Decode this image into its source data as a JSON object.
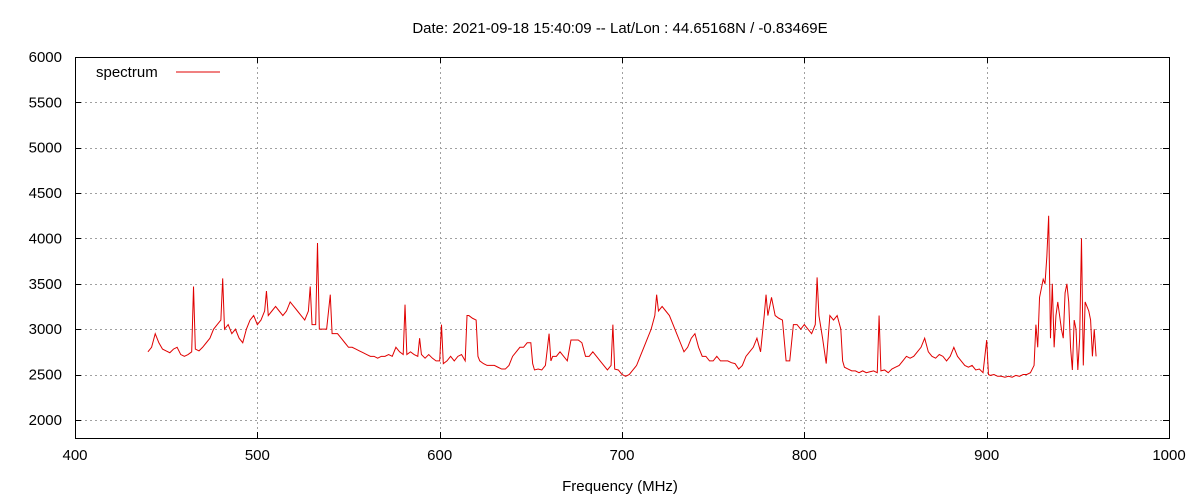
{
  "chart_data": {
    "type": "line",
    "title": "Date: 2021-09-18 15:40:09  --  Lat/Lon : 44.65168N / -0.83469E",
    "xlabel": "Frequency (MHz)",
    "ylabel": "",
    "xlim": [
      400,
      1000
    ],
    "ylim": [
      1800,
      6000
    ],
    "x_ticks": [
      400,
      500,
      600,
      700,
      800,
      900,
      1000
    ],
    "y_ticks": [
      2000,
      2500,
      3000,
      3500,
      4000,
      4500,
      5000,
      5500,
      6000
    ],
    "grid": true,
    "legend_position": "top-left",
    "series": [
      {
        "name": "spectrum",
        "color": "#e00000",
        "points": [
          [
            440,
            2750
          ],
          [
            442,
            2800
          ],
          [
            444,
            2950
          ],
          [
            446,
            2850
          ],
          [
            448,
            2780
          ],
          [
            450,
            2760
          ],
          [
            452,
            2740
          ],
          [
            454,
            2780
          ],
          [
            456,
            2800
          ],
          [
            458,
            2720
          ],
          [
            460,
            2700
          ],
          [
            462,
            2720
          ],
          [
            464,
            2750
          ],
          [
            465,
            3470
          ],
          [
            466,
            2780
          ],
          [
            468,
            2760
          ],
          [
            470,
            2800
          ],
          [
            472,
            2850
          ],
          [
            474,
            2900
          ],
          [
            476,
            3000
          ],
          [
            478,
            3050
          ],
          [
            480,
            3100
          ],
          [
            481,
            3560
          ],
          [
            482,
            3000
          ],
          [
            484,
            3050
          ],
          [
            486,
            2950
          ],
          [
            488,
            3000
          ],
          [
            490,
            2900
          ],
          [
            492,
            2850
          ],
          [
            494,
            3000
          ],
          [
            496,
            3100
          ],
          [
            498,
            3150
          ],
          [
            500,
            3050
          ],
          [
            502,
            3100
          ],
          [
            504,
            3200
          ],
          [
            505,
            3420
          ],
          [
            506,
            3150
          ],
          [
            508,
            3200
          ],
          [
            510,
            3250
          ],
          [
            512,
            3200
          ],
          [
            514,
            3150
          ],
          [
            516,
            3200
          ],
          [
            518,
            3300
          ],
          [
            520,
            3250
          ],
          [
            522,
            3200
          ],
          [
            524,
            3150
          ],
          [
            526,
            3100
          ],
          [
            528,
            3200
          ],
          [
            529,
            3470
          ],
          [
            530,
            3050
          ],
          [
            532,
            3050
          ],
          [
            533,
            3950
          ],
          [
            534,
            3000
          ],
          [
            536,
            3000
          ],
          [
            538,
            3000
          ],
          [
            540,
            3380
          ],
          [
            541,
            2950
          ],
          [
            544,
            2950
          ],
          [
            546,
            2900
          ],
          [
            548,
            2850
          ],
          [
            550,
            2800
          ],
          [
            552,
            2800
          ],
          [
            554,
            2780
          ],
          [
            556,
            2760
          ],
          [
            558,
            2740
          ],
          [
            560,
            2720
          ],
          [
            562,
            2700
          ],
          [
            564,
            2700
          ],
          [
            566,
            2680
          ],
          [
            568,
            2700
          ],
          [
            570,
            2700
          ],
          [
            572,
            2720
          ],
          [
            574,
            2700
          ],
          [
            576,
            2800
          ],
          [
            578,
            2750
          ],
          [
            580,
            2720
          ],
          [
            581,
            3270
          ],
          [
            582,
            2720
          ],
          [
            584,
            2750
          ],
          [
            586,
            2720
          ],
          [
            588,
            2700
          ],
          [
            589,
            2900
          ],
          [
            590,
            2720
          ],
          [
            592,
            2680
          ],
          [
            594,
            2720
          ],
          [
            596,
            2680
          ],
          [
            598,
            2650
          ],
          [
            600,
            2650
          ],
          [
            601,
            3050
          ],
          [
            602,
            2620
          ],
          [
            604,
            2650
          ],
          [
            606,
            2700
          ],
          [
            608,
            2650
          ],
          [
            610,
            2700
          ],
          [
            612,
            2720
          ],
          [
            614,
            2650
          ],
          [
            615,
            3150
          ],
          [
            616,
            3150
          ],
          [
            618,
            3120
          ],
          [
            620,
            3100
          ],
          [
            621,
            2700
          ],
          [
            622,
            2650
          ],
          [
            624,
            2620
          ],
          [
            626,
            2600
          ],
          [
            628,
            2600
          ],
          [
            630,
            2600
          ],
          [
            632,
            2580
          ],
          [
            634,
            2560
          ],
          [
            636,
            2560
          ],
          [
            638,
            2600
          ],
          [
            640,
            2700
          ],
          [
            642,
            2750
          ],
          [
            644,
            2800
          ],
          [
            646,
            2800
          ],
          [
            648,
            2850
          ],
          [
            650,
            2850
          ],
          [
            651,
            2620
          ],
          [
            652,
            2550
          ],
          [
            654,
            2560
          ],
          [
            656,
            2550
          ],
          [
            658,
            2600
          ],
          [
            660,
            2950
          ],
          [
            661,
            2650
          ],
          [
            662,
            2700
          ],
          [
            664,
            2700
          ],
          [
            666,
            2750
          ],
          [
            668,
            2700
          ],
          [
            670,
            2650
          ],
          [
            672,
            2880
          ],
          [
            674,
            2880
          ],
          [
            676,
            2880
          ],
          [
            678,
            2850
          ],
          [
            680,
            2700
          ],
          [
            682,
            2700
          ],
          [
            684,
            2750
          ],
          [
            686,
            2700
          ],
          [
            688,
            2650
          ],
          [
            690,
            2600
          ],
          [
            692,
            2550
          ],
          [
            694,
            2600
          ],
          [
            695,
            3050
          ],
          [
            696,
            2560
          ],
          [
            698,
            2550
          ],
          [
            700,
            2500
          ],
          [
            702,
            2480
          ],
          [
            704,
            2500
          ],
          [
            706,
            2550
          ],
          [
            708,
            2600
          ],
          [
            710,
            2700
          ],
          [
            712,
            2800
          ],
          [
            714,
            2900
          ],
          [
            716,
            3000
          ],
          [
            718,
            3150
          ],
          [
            719,
            3380
          ],
          [
            720,
            3200
          ],
          [
            722,
            3250
          ],
          [
            724,
            3200
          ],
          [
            726,
            3150
          ],
          [
            728,
            3050
          ],
          [
            730,
            2950
          ],
          [
            732,
            2850
          ],
          [
            734,
            2750
          ],
          [
            736,
            2800
          ],
          [
            738,
            2900
          ],
          [
            740,
            2950
          ],
          [
            742,
            2800
          ],
          [
            744,
            2700
          ],
          [
            746,
            2700
          ],
          [
            748,
            2650
          ],
          [
            750,
            2650
          ],
          [
            752,
            2700
          ],
          [
            754,
            2650
          ],
          [
            756,
            2650
          ],
          [
            758,
            2650
          ],
          [
            760,
            2630
          ],
          [
            762,
            2620
          ],
          [
            764,
            2560
          ],
          [
            766,
            2600
          ],
          [
            768,
            2700
          ],
          [
            770,
            2750
          ],
          [
            772,
            2800
          ],
          [
            774,
            2900
          ],
          [
            776,
            2750
          ],
          [
            778,
            3150
          ],
          [
            779,
            3380
          ],
          [
            780,
            3150
          ],
          [
            782,
            3350
          ],
          [
            784,
            3150
          ],
          [
            786,
            3120
          ],
          [
            788,
            3100
          ],
          [
            790,
            2650
          ],
          [
            792,
            2650
          ],
          [
            794,
            3050
          ],
          [
            796,
            3050
          ],
          [
            798,
            3000
          ],
          [
            800,
            3050
          ],
          [
            802,
            3000
          ],
          [
            804,
            2950
          ],
          [
            806,
            3050
          ],
          [
            807,
            3570
          ],
          [
            808,
            3150
          ],
          [
            810,
            2900
          ],
          [
            812,
            2620
          ],
          [
            814,
            3150
          ],
          [
            816,
            3100
          ],
          [
            818,
            3150
          ],
          [
            820,
            3000
          ],
          [
            821,
            2650
          ],
          [
            822,
            2580
          ],
          [
            824,
            2560
          ],
          [
            826,
            2540
          ],
          [
            828,
            2540
          ],
          [
            830,
            2520
          ],
          [
            832,
            2540
          ],
          [
            834,
            2520
          ],
          [
            836,
            2530
          ],
          [
            838,
            2540
          ],
          [
            840,
            2520
          ],
          [
            841,
            3150
          ],
          [
            842,
            2540
          ],
          [
            844,
            2550
          ],
          [
            846,
            2520
          ],
          [
            848,
            2560
          ],
          [
            850,
            2580
          ],
          [
            852,
            2600
          ],
          [
            854,
            2650
          ],
          [
            856,
            2700
          ],
          [
            858,
            2680
          ],
          [
            860,
            2700
          ],
          [
            862,
            2750
          ],
          [
            864,
            2800
          ],
          [
            866,
            2900
          ],
          [
            868,
            2750
          ],
          [
            870,
            2700
          ],
          [
            872,
            2680
          ],
          [
            874,
            2720
          ],
          [
            876,
            2700
          ],
          [
            878,
            2650
          ],
          [
            880,
            2700
          ],
          [
            882,
            2800
          ],
          [
            884,
            2700
          ],
          [
            886,
            2650
          ],
          [
            888,
            2600
          ],
          [
            890,
            2580
          ],
          [
            892,
            2600
          ],
          [
            894,
            2550
          ],
          [
            896,
            2560
          ],
          [
            898,
            2520
          ],
          [
            900,
            2880
          ],
          [
            901,
            2500
          ],
          [
            902,
            2490
          ],
          [
            904,
            2500
          ],
          [
            906,
            2480
          ],
          [
            908,
            2480
          ],
          [
            910,
            2470
          ],
          [
            912,
            2480
          ],
          [
            914,
            2470
          ],
          [
            916,
            2490
          ],
          [
            918,
            2480
          ],
          [
            920,
            2500
          ],
          [
            922,
            2500
          ],
          [
            924,
            2520
          ],
          [
            926,
            2600
          ],
          [
            927,
            3050
          ],
          [
            928,
            2800
          ],
          [
            929,
            3350
          ],
          [
            930,
            3450
          ],
          [
            931,
            3550
          ],
          [
            932,
            3500
          ],
          [
            933,
            3800
          ],
          [
            934,
            4250
          ],
          [
            935,
            2900
          ],
          [
            936,
            3500
          ],
          [
            937,
            2800
          ],
          [
            938,
            3150
          ],
          [
            939,
            3300
          ],
          [
            940,
            3150
          ],
          [
            941,
            3000
          ],
          [
            942,
            2900
          ],
          [
            943,
            3400
          ],
          [
            944,
            3500
          ],
          [
            945,
            3300
          ],
          [
            946,
            2800
          ],
          [
            947,
            2550
          ],
          [
            948,
            3100
          ],
          [
            949,
            3000
          ],
          [
            950,
            2550
          ],
          [
            951,
            2900
          ],
          [
            952,
            4000
          ],
          [
            953,
            2600
          ],
          [
            954,
            3300
          ],
          [
            955,
            3250
          ],
          [
            956,
            3200
          ],
          [
            957,
            3100
          ],
          [
            958,
            2700
          ],
          [
            959,
            3000
          ],
          [
            960,
            2700
          ]
        ]
      }
    ]
  }
}
